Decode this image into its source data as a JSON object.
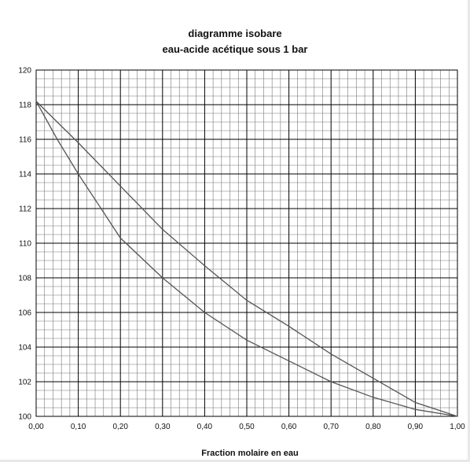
{
  "chart_data": {
    "type": "line",
    "title": "diagramme isobare",
    "subtitle": "eau-acide acétique sous 1 bar",
    "xlabel": "Fraction molaire en eau",
    "ylabel": "",
    "xlim": [
      0,
      1
    ],
    "ylim": [
      100,
      120
    ],
    "x_ticks": [
      "0,00",
      "0,10",
      "0,20",
      "0,30",
      "0,40",
      "0,50",
      "0,60",
      "0,70",
      "0,80",
      "0,90",
      "1,00"
    ],
    "y_ticks": [
      "100",
      "102",
      "104",
      "106",
      "108",
      "110",
      "112",
      "114",
      "116",
      "118",
      "120"
    ],
    "grid": true,
    "minor_grid_x": 0.02,
    "minor_grid_y": 0.5,
    "series": [
      {
        "color": "#555555",
        "x": [
          0.0,
          0.05,
          0.1,
          0.2,
          0.3,
          0.4,
          0.5,
          0.6,
          0.7,
          0.8,
          0.9,
          1.0
        ],
        "y": [
          118.2,
          116.0,
          114.0,
          110.3,
          108.0,
          106.0,
          104.4,
          103.2,
          102.0,
          101.1,
          100.4,
          100.0
        ]
      },
      {
        "color": "#555555",
        "x": [
          0.0,
          0.1,
          0.2,
          0.3,
          0.4,
          0.5,
          0.6,
          0.7,
          0.8,
          0.9,
          1.0
        ],
        "y": [
          118.2,
          115.8,
          113.3,
          110.8,
          108.7,
          106.7,
          105.2,
          103.6,
          102.2,
          100.8,
          100.0
        ]
      }
    ]
  }
}
